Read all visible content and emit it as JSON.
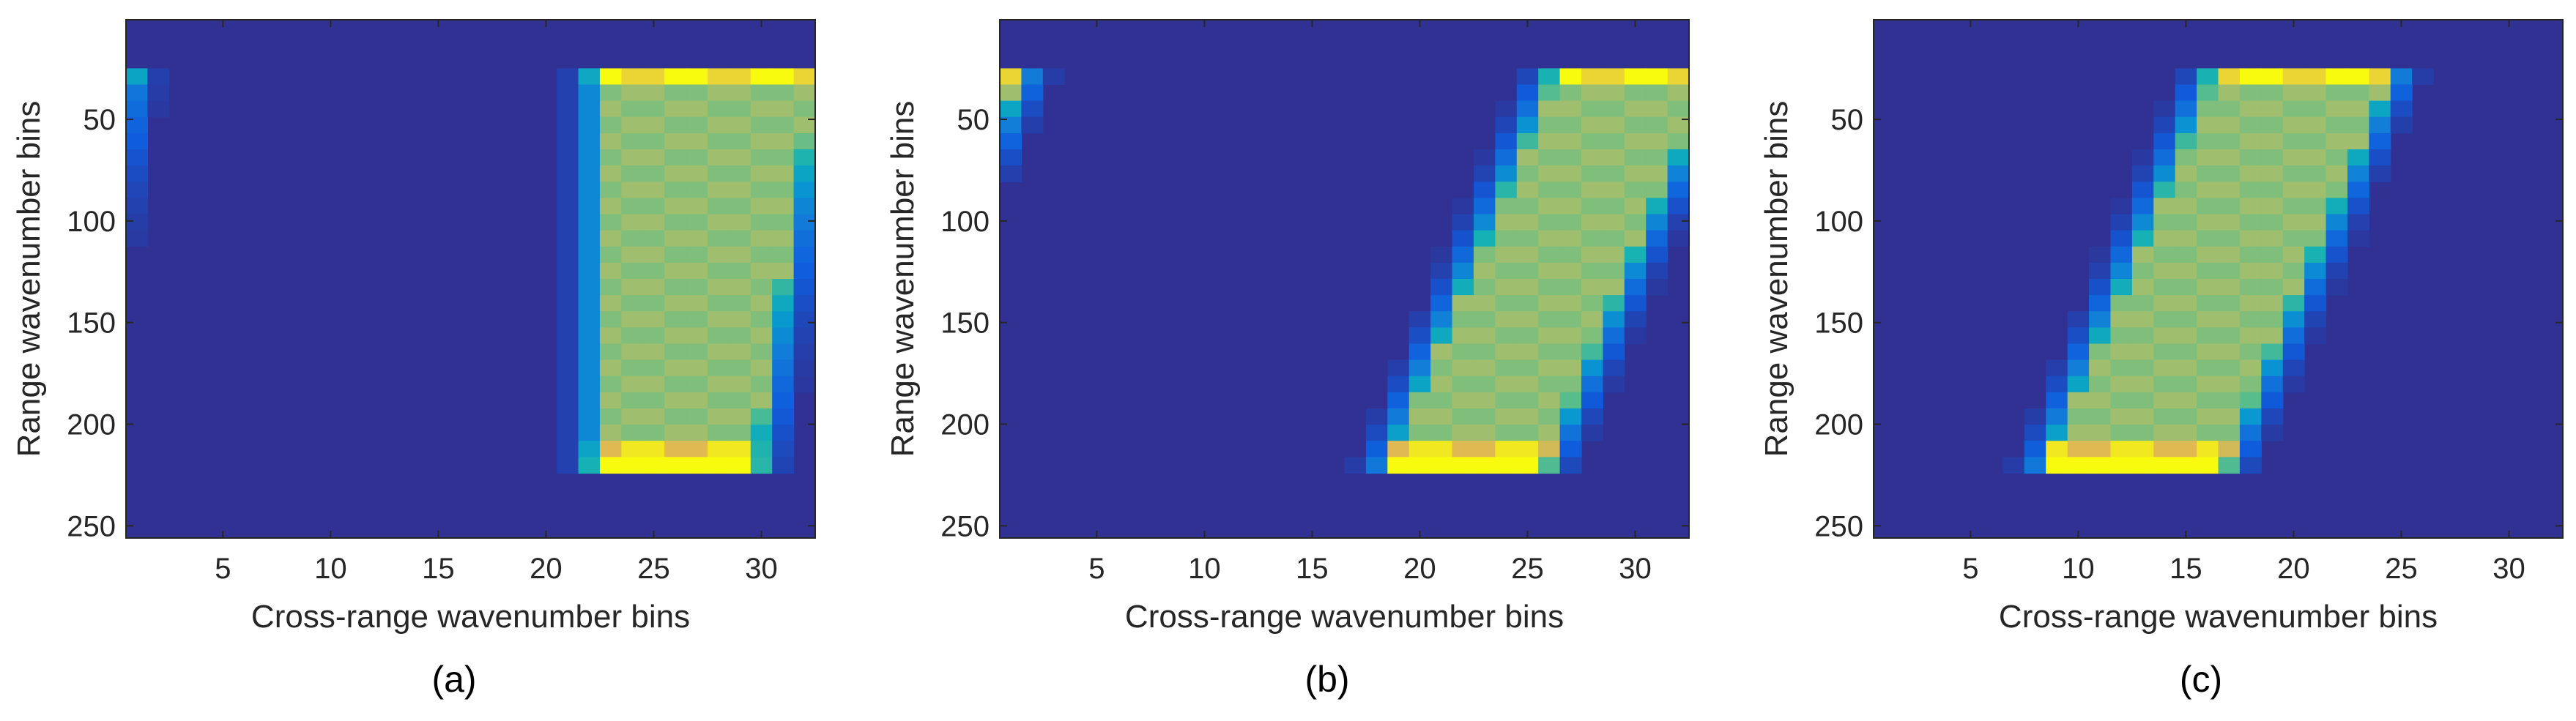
{
  "chart_data": [
    {
      "type": "heatmap",
      "panel_label": "(a)",
      "xlabel": "Cross-range wavenumber bins",
      "ylabel": "Range wavenumber bins",
      "xlim": [
        0.5,
        32.5
      ],
      "ylim": [
        256,
        1
      ],
      "xticks": [
        "5",
        "10",
        "15",
        "20",
        "25",
        "30"
      ],
      "yticks": [
        "50",
        "100",
        "150",
        "200",
        "250"
      ],
      "colormap": "parula",
      "bands": [
        {
          "top_row": 26,
          "bottom_row": 225,
          "left_at_top": 22.5,
          "left_at_bottom": 22.5,
          "right_at_top": 32.5,
          "right_at_bottom": 29.5,
          "wrap": true,
          "shift": 32
        }
      ]
    },
    {
      "type": "heatmap",
      "panel_label": "(b)",
      "xlabel": "Cross-range wavenumber bins",
      "ylabel": "Range wavenumber bins",
      "xlim": [
        0.5,
        32.5
      ],
      "ylim": [
        256,
        1
      ],
      "xticks": [
        "5",
        "10",
        "15",
        "20",
        "25",
        "30"
      ],
      "yticks": [
        "50",
        "100",
        "150",
        "200",
        "250"
      ],
      "colormap": "parula",
      "bands": [
        {
          "top_row": 26,
          "bottom_row": 225,
          "left_at_top": 26.5,
          "left_at_bottom": 18.5,
          "right_at_top": 33.5,
          "right_at_bottom": 25.5,
          "wrap": true,
          "shift": 32
        }
      ]
    },
    {
      "type": "heatmap",
      "panel_label": "(c)",
      "xlabel": "Cross-range wavenumber bins",
      "ylabel": "Range wavenumber bins",
      "xlim": [
        0.5,
        32.5
      ],
      "ylim": [
        256,
        1
      ],
      "xticks": [
        "5",
        "10",
        "15",
        "20",
        "25",
        "30"
      ],
      "yticks": [
        "50",
        "100",
        "150",
        "200",
        "250"
      ],
      "colormap": "parula",
      "bands": [
        {
          "top_row": 26,
          "bottom_row": 225,
          "left_at_top": 16.5,
          "left_at_bottom": 8.5,
          "right_at_top": 24.5,
          "right_at_bottom": 16.5,
          "wrap": false,
          "shift": 0
        }
      ]
    }
  ]
}
